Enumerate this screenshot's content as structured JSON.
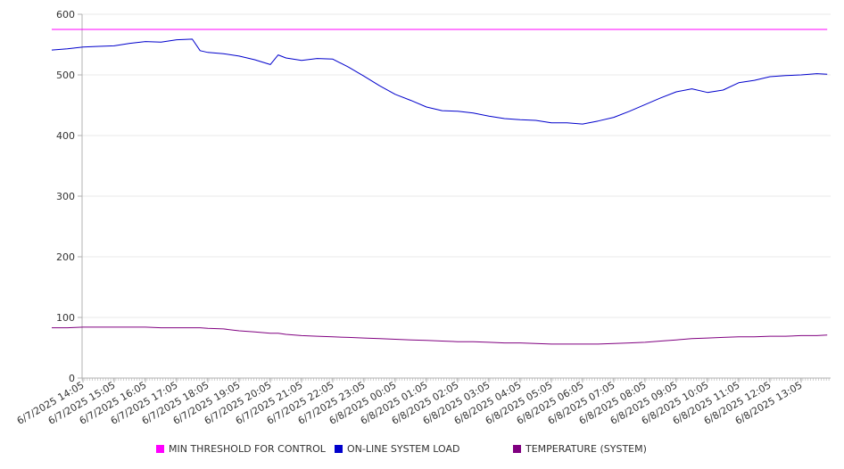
{
  "chart_data": {
    "type": "line",
    "title": "",
    "xlabel": "",
    "ylabel": "",
    "ylim": [
      0,
      600
    ],
    "y_ticks": [
      "0",
      "100",
      "200",
      "300",
      "400",
      "500",
      "600"
    ],
    "x_tick_labels": [
      "6/7/2025 14:05",
      "6/7/2025 15:05",
      "6/7/2025 16:05",
      "6/7/2025 17:05",
      "6/7/2025 18:05",
      "6/7/2025 19:05",
      "6/7/2025 20:05",
      "6/7/2025 21:05",
      "6/7/2025 22:05",
      "6/7/2025 23:05",
      "6/8/2025 00:05",
      "6/8/2025 01:05",
      "6/8/2025 02:05",
      "6/8/2025 03:05",
      "6/8/2025 04:05",
      "6/8/2025 05:05",
      "6/8/2025 06:05",
      "6/8/2025 07:05",
      "6/8/2025 08:05",
      "6/8/2025 09:05",
      "6/8/2025 10:05",
      "6/8/2025 11:05",
      "6/8/2025 12:05",
      "6/8/2025 13:05"
    ],
    "x": [
      "6/7/2025 13:05",
      "6/7/2025 13:35",
      "6/7/2025 14:05",
      "6/7/2025 14:35",
      "6/7/2025 15:05",
      "6/7/2025 15:35",
      "6/7/2025 16:05",
      "6/7/2025 16:35",
      "6/7/2025 17:05",
      "6/7/2025 17:35",
      "6/7/2025 17:50",
      "6/7/2025 18:05",
      "6/7/2025 18:35",
      "6/7/2025 19:05",
      "6/7/2025 19:35",
      "6/7/2025 20:05",
      "6/7/2025 20:20",
      "6/7/2025 20:35",
      "6/7/2025 21:05",
      "6/7/2025 21:35",
      "6/7/2025 22:05",
      "6/7/2025 22:35",
      "6/7/2025 23:05",
      "6/7/2025 23:35",
      "6/8/2025 00:05",
      "6/8/2025 00:35",
      "6/8/2025 01:05",
      "6/8/2025 01:35",
      "6/8/2025 02:05",
      "6/8/2025 02:35",
      "6/8/2025 03:05",
      "6/8/2025 03:35",
      "6/8/2025 04:05",
      "6/8/2025 04:35",
      "6/8/2025 05:05",
      "6/8/2025 05:35",
      "6/8/2025 06:05",
      "6/8/2025 06:35",
      "6/8/2025 07:05",
      "6/8/2025 07:35",
      "6/8/2025 08:05",
      "6/8/2025 08:35",
      "6/8/2025 09:05",
      "6/8/2025 09:35",
      "6/8/2025 10:05",
      "6/8/2025 10:35",
      "6/8/2025 11:05",
      "6/8/2025 11:35",
      "6/8/2025 12:05",
      "6/8/2025 12:35",
      "6/8/2025 13:05",
      "6/8/2025 13:35",
      "6/8/2025 13:55"
    ],
    "series": [
      {
        "name": "MIN THRESHOLD FOR CONTROL",
        "color": "#ff00ff",
        "values": [
          575,
          575,
          575,
          575,
          575,
          575,
          575,
          575,
          575,
          575,
          575,
          575,
          575,
          575,
          575,
          575,
          575,
          575,
          575,
          575,
          575,
          575,
          575,
          575,
          575,
          575,
          575,
          575,
          575,
          575,
          575,
          575,
          575,
          575,
          575,
          575,
          575,
          575,
          575,
          575,
          575,
          575,
          575,
          575,
          575,
          575,
          575,
          575,
          575,
          575,
          575,
          575,
          575
        ]
      },
      {
        "name": "ON-LINE SYSTEM LOAD",
        "color": "#0000cc",
        "values": [
          541,
          543,
          546,
          547,
          548,
          552,
          555,
          554,
          558,
          559,
          540,
          537,
          535,
          531,
          525,
          517,
          533,
          528,
          524,
          527,
          526,
          513,
          498,
          482,
          468,
          458,
          447,
          441,
          440,
          437,
          432,
          428,
          426,
          425,
          421,
          421,
          419,
          424,
          430,
          440,
          451,
          462,
          472,
          477,
          471,
          475,
          487,
          491,
          497,
          499,
          500,
          502,
          501
        ]
      },
      {
        "name": "TEMPERATURE (SYSTEM)",
        "color": "#800080",
        "values": [
          83,
          83,
          84,
          84,
          84,
          84,
          84,
          83,
          83,
          83,
          83,
          82,
          81,
          78,
          76,
          74,
          74,
          72,
          70,
          69,
          68,
          67,
          66,
          65,
          64,
          63,
          62,
          61,
          60,
          60,
          59,
          58,
          58,
          57,
          56,
          56,
          56,
          56,
          57,
          58,
          59,
          61,
          63,
          65,
          66,
          67,
          68,
          68,
          69,
          69,
          70,
          70,
          71
        ]
      }
    ],
    "grid": "horizontal",
    "legend_position": "bottom",
    "colors": {
      "axis": "#b0b0b0",
      "grid": "#e8e8e8",
      "text": "#333333"
    }
  }
}
